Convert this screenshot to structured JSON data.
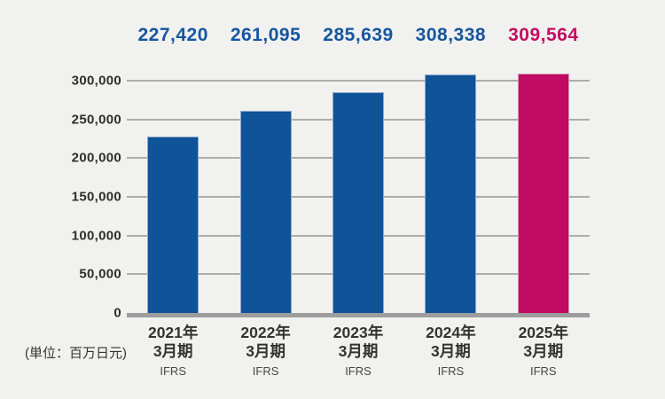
{
  "chart_data": {
    "type": "bar",
    "title": "",
    "unit": "(単位：百万日元)",
    "categories": [
      {
        "line1": "2021年",
        "line2": "3月期",
        "sub": "IFRS"
      },
      {
        "line1": "2022年",
        "line2": "3月期",
        "sub": "IFRS"
      },
      {
        "line1": "2023年",
        "line2": "3月期",
        "sub": "IFRS"
      },
      {
        "line1": "2024年",
        "line2": "3月期",
        "sub": "IFRS"
      },
      {
        "line1": "2025年",
        "line2": "3月期",
        "sub": "IFRS"
      }
    ],
    "values": [
      227420,
      261095,
      285639,
      308338,
      309564
    ],
    "value_labels": [
      "227,420",
      "261,095",
      "285,639",
      "308,338",
      "309,564"
    ],
    "highlight_index": 4,
    "ylim": [
      0,
      300000
    ],
    "y_ticks": [
      {
        "value": 0,
        "label": "0"
      },
      {
        "value": 50000,
        "label": "50,000"
      },
      {
        "value": 100000,
        "label": "100,000"
      },
      {
        "value": 150000,
        "label": "150,000"
      },
      {
        "value": 200000,
        "label": "200,000"
      },
      {
        "value": 250000,
        "label": "250,000"
      },
      {
        "value": 300000,
        "label": "300,000"
      }
    ],
    "grid": true,
    "legend": "none"
  },
  "colors": {
    "background": "#F1F1EF",
    "bar_default": "#0F5399",
    "bar_default_border": "#8FA9CB",
    "bar_highlight": "#C00A64",
    "bar_highlight_border": "#D795B4",
    "value_default": "#15569F",
    "value_highlight": "#C50B63",
    "gridline": "#ADADAD",
    "axis_line": "#9D9D9D",
    "tick_text": "#2E2E2E",
    "category_text": "#333333",
    "sub_text": "#474747"
  }
}
